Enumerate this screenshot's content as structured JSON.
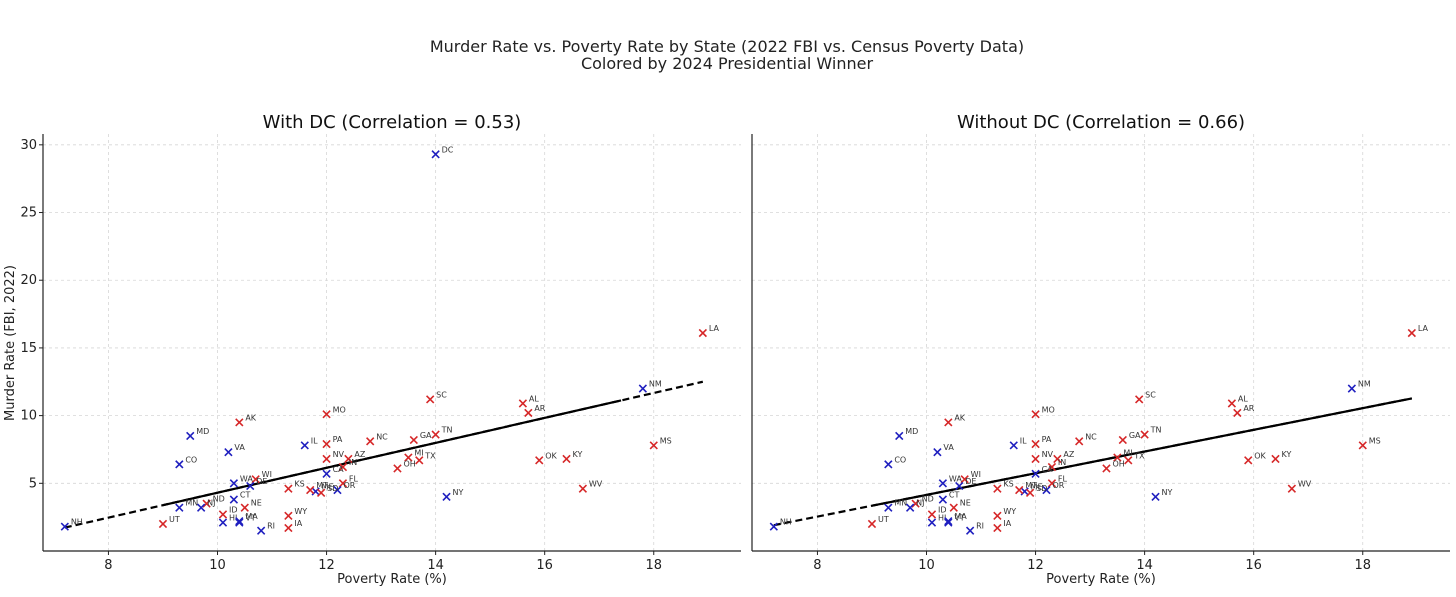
{
  "figure": {
    "title_line1": "Murder Rate vs. Poverty Rate by State (2022 FBI vs. Census Poverty Data)",
    "title_line2": "Colored by 2024 Presidential Winner"
  },
  "colors": {
    "republican": "#d62728",
    "democrat": "#1f1fbf",
    "fit": "#000000"
  },
  "chart_data": [
    {
      "type": "scatter",
      "title": "With DC (Correlation = 0.53)",
      "xlabel": "Poverty Rate (%)",
      "ylabel": "Murder Rate (FBI, 2022)",
      "xlim": [
        6.8,
        19.6
      ],
      "ylim": [
        0,
        30.8
      ],
      "xticks": [
        8,
        10,
        12,
        14,
        16,
        18
      ],
      "yticks": [
        5,
        10,
        15,
        20,
        25,
        30
      ],
      "include_dc": true,
      "fit": {
        "x0": 7.2,
        "x1": 18.9,
        "solid_from": 9.0,
        "solid_to": 17.4
      },
      "points": [
        {
          "label": "DC",
          "x": 14.0,
          "y": 29.3,
          "party": "D"
        },
        {
          "label": "LA",
          "x": 18.9,
          "y": 16.1,
          "party": "R"
        },
        {
          "label": "NM",
          "x": 17.8,
          "y": 12.0,
          "party": "D"
        },
        {
          "label": "MS",
          "x": 18.0,
          "y": 7.8,
          "party": "R"
        },
        {
          "label": "WV",
          "x": 16.7,
          "y": 4.6,
          "party": "R"
        },
        {
          "label": "KY",
          "x": 16.4,
          "y": 6.8,
          "party": "R"
        },
        {
          "label": "OK",
          "x": 15.9,
          "y": 6.7,
          "party": "R"
        },
        {
          "label": "AL",
          "x": 15.6,
          "y": 10.9,
          "party": "R"
        },
        {
          "label": "AR",
          "x": 15.7,
          "y": 10.2,
          "party": "R"
        },
        {
          "label": "SC",
          "x": 13.9,
          "y": 11.2,
          "party": "R"
        },
        {
          "label": "TN",
          "x": 14.0,
          "y": 8.6,
          "party": "R"
        },
        {
          "label": "GA",
          "x": 13.6,
          "y": 8.2,
          "party": "R"
        },
        {
          "label": "MI",
          "x": 13.5,
          "y": 6.9,
          "party": "R"
        },
        {
          "label": "TX",
          "x": 13.7,
          "y": 6.7,
          "party": "R"
        },
        {
          "label": "OH",
          "x": 13.3,
          "y": 6.1,
          "party": "R"
        },
        {
          "label": "NY",
          "x": 14.2,
          "y": 4.0,
          "party": "D"
        },
        {
          "label": "NC",
          "x": 12.8,
          "y": 8.1,
          "party": "R"
        },
        {
          "label": "MO",
          "x": 12.0,
          "y": 10.1,
          "party": "R"
        },
        {
          "label": "PA",
          "x": 12.0,
          "y": 7.9,
          "party": "R"
        },
        {
          "label": "IL",
          "x": 11.6,
          "y": 7.8,
          "party": "D"
        },
        {
          "label": "NV",
          "x": 12.0,
          "y": 6.8,
          "party": "R"
        },
        {
          "label": "AZ",
          "x": 12.4,
          "y": 6.8,
          "party": "R"
        },
        {
          "label": "IN",
          "x": 12.3,
          "y": 6.2,
          "party": "R"
        },
        {
          "label": "CA",
          "x": 12.0,
          "y": 5.7,
          "party": "D"
        },
        {
          "label": "FL",
          "x": 12.3,
          "y": 5.0,
          "party": "R"
        },
        {
          "label": "OR",
          "x": 12.2,
          "y": 4.5,
          "party": "D"
        },
        {
          "label": "ME",
          "x": 11.8,
          "y": 4.4,
          "party": "D"
        },
        {
          "label": "MT",
          "x": 11.7,
          "y": 4.5,
          "party": "R"
        },
        {
          "label": "SD",
          "x": 11.9,
          "y": 4.3,
          "party": "R"
        },
        {
          "label": "KS",
          "x": 11.3,
          "y": 4.6,
          "party": "R"
        },
        {
          "label": "WY",
          "x": 11.3,
          "y": 2.6,
          "party": "R"
        },
        {
          "label": "IA",
          "x": 11.3,
          "y": 1.7,
          "party": "R"
        },
        {
          "label": "RI",
          "x": 10.8,
          "y": 1.5,
          "party": "D"
        },
        {
          "label": "AK",
          "x": 10.4,
          "y": 9.5,
          "party": "R"
        },
        {
          "label": "VA",
          "x": 10.2,
          "y": 7.3,
          "party": "D"
        },
        {
          "label": "MD",
          "x": 9.5,
          "y": 8.5,
          "party": "D"
        },
        {
          "label": "CO",
          "x": 9.3,
          "y": 6.4,
          "party": "D"
        },
        {
          "label": "WI",
          "x": 10.7,
          "y": 5.3,
          "party": "R"
        },
        {
          "label": "WA",
          "x": 10.3,
          "y": 5.0,
          "party": "D"
        },
        {
          "label": "DE",
          "x": 10.6,
          "y": 4.8,
          "party": "D"
        },
        {
          "label": "CT",
          "x": 10.3,
          "y": 3.8,
          "party": "D"
        },
        {
          "label": "NE",
          "x": 10.5,
          "y": 3.2,
          "party": "R"
        },
        {
          "label": "ND",
          "x": 9.8,
          "y": 3.5,
          "party": "R"
        },
        {
          "label": "MN",
          "x": 9.3,
          "y": 3.2,
          "party": "D"
        },
        {
          "label": "NJ",
          "x": 9.7,
          "y": 3.2,
          "party": "D"
        },
        {
          "label": "ID",
          "x": 10.1,
          "y": 2.7,
          "party": "R"
        },
        {
          "label": "HI",
          "x": 10.1,
          "y": 2.1,
          "party": "D"
        },
        {
          "label": "MA",
          "x": 10.4,
          "y": 2.2,
          "party": "D"
        },
        {
          "label": "VT",
          "x": 10.4,
          "y": 2.1,
          "party": "D"
        },
        {
          "label": "UT",
          "x": 9.0,
          "y": 2.0,
          "party": "R"
        },
        {
          "label": "NH",
          "x": 7.2,
          "y": 1.8,
          "party": "D"
        }
      ]
    },
    {
      "type": "scatter",
      "title": "Without DC (Correlation = 0.66)",
      "xlabel": "Poverty Rate (%)",
      "ylabel": "",
      "xlim": [
        6.8,
        19.6
      ],
      "ylim": [
        0,
        30.8
      ],
      "xticks": [
        8,
        10,
        12,
        14,
        16,
        18
      ],
      "yticks": [],
      "include_dc": false,
      "fit": {
        "x0": 7.2,
        "x1": 18.9,
        "solid_from": 9.0,
        "solid_to": 18.9
      },
      "points": "same_as_first_without_DC"
    }
  ]
}
